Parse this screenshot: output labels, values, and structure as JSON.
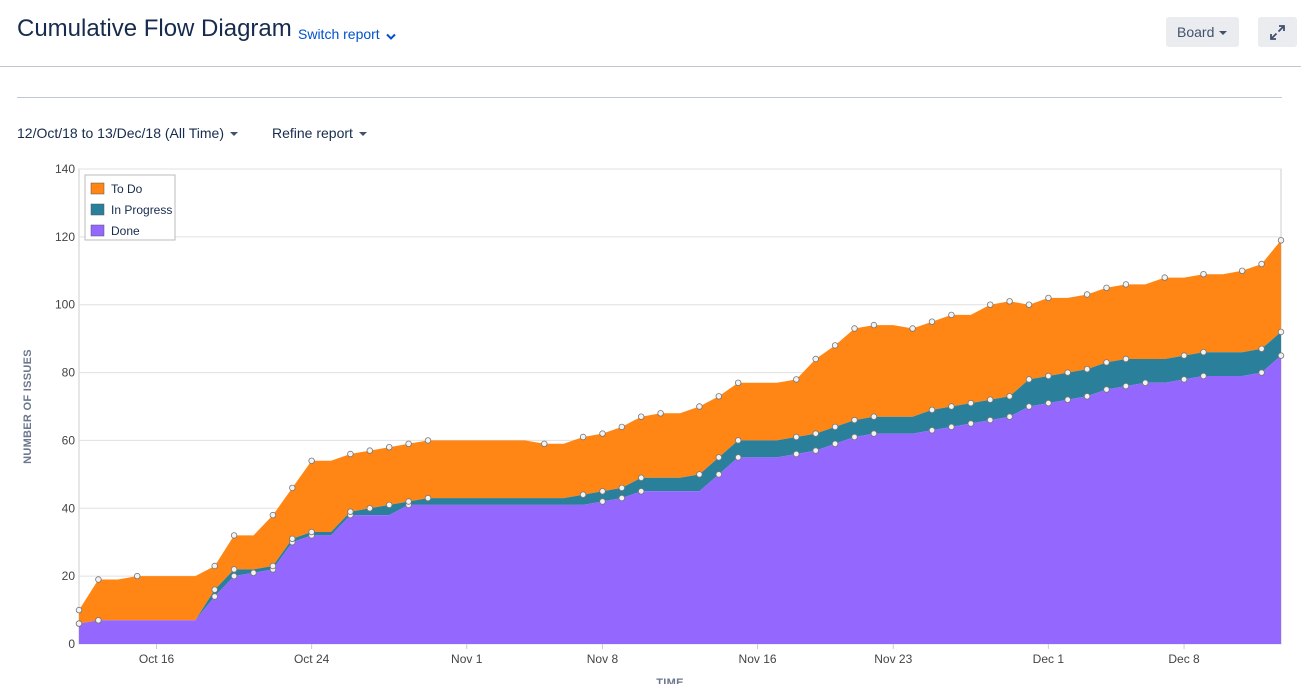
{
  "header": {
    "title": "Cumulative Flow Diagram",
    "switch_report": "Switch report",
    "board_label": "Board"
  },
  "filters": {
    "date_range": "12/Oct/18 to 13/Dec/18 (All Time)",
    "refine": "Refine report"
  },
  "icons": {
    "switch_chevron": "chevron-down-icon",
    "expand": "expand-icon"
  },
  "chart_data": {
    "type": "area",
    "stacked": true,
    "xlabel": "TIME",
    "ylabel": "NUMBER OF ISSUES",
    "ylim": [
      0,
      140
    ],
    "yticks": [
      "0",
      "20",
      "40",
      "60",
      "80",
      "100",
      "120",
      "140"
    ],
    "xlim": [
      "2018-10-12",
      "2018-12-13"
    ],
    "xticks": [
      {
        "label": "Oct 16",
        "date": "2018-10-16"
      },
      {
        "label": "Oct 24",
        "date": "2018-10-24"
      },
      {
        "label": "Nov 1",
        "date": "2018-11-01"
      },
      {
        "label": "Nov 8",
        "date": "2018-11-08"
      },
      {
        "label": "Nov 16",
        "date": "2018-11-16"
      },
      {
        "label": "Nov 23",
        "date": "2018-11-23"
      },
      {
        "label": "Dec 1",
        "date": "2018-12-01"
      },
      {
        "label": "Dec 8",
        "date": "2018-12-08"
      }
    ],
    "grid": true,
    "legend_position": "top-left",
    "colors": {
      "To Do": "#ff8514",
      "In Progress": "#2a7f9b",
      "Done": "#9467ff"
    },
    "x": [
      "2018-10-12",
      "2018-10-13",
      "2018-10-14",
      "2018-10-15",
      "2018-10-16",
      "2018-10-17",
      "2018-10-18",
      "2018-10-19",
      "2018-10-20",
      "2018-10-21",
      "2018-10-22",
      "2018-10-23",
      "2018-10-24",
      "2018-10-25",
      "2018-10-26",
      "2018-10-27",
      "2018-10-28",
      "2018-10-29",
      "2018-10-30",
      "2018-10-31",
      "2018-11-01",
      "2018-11-02",
      "2018-11-03",
      "2018-11-04",
      "2018-11-05",
      "2018-11-06",
      "2018-11-07",
      "2018-11-08",
      "2018-11-09",
      "2018-11-10",
      "2018-11-11",
      "2018-11-12",
      "2018-11-13",
      "2018-11-14",
      "2018-11-15",
      "2018-11-16",
      "2018-11-17",
      "2018-11-18",
      "2018-11-19",
      "2018-11-20",
      "2018-11-21",
      "2018-11-22",
      "2018-11-23",
      "2018-11-24",
      "2018-11-25",
      "2018-11-26",
      "2018-11-27",
      "2018-11-28",
      "2018-11-29",
      "2018-11-30",
      "2018-12-01",
      "2018-12-02",
      "2018-12-03",
      "2018-12-04",
      "2018-12-05",
      "2018-12-06",
      "2018-12-07",
      "2018-12-08",
      "2018-12-09",
      "2018-12-10",
      "2018-12-11",
      "2018-12-12",
      "2018-12-13"
    ],
    "series": [
      {
        "name": "To Do",
        "values": [
          4,
          12,
          12,
          13,
          13,
          13,
          13,
          7,
          10,
          10,
          15,
          15,
          21,
          21,
          17,
          17,
          17,
          17,
          17,
          17,
          17,
          17,
          17,
          17,
          16,
          16,
          17,
          17,
          18,
          18,
          19,
          19,
          20,
          18,
          17,
          17,
          17,
          17,
          22,
          24,
          27,
          27,
          27,
          26,
          26,
          27,
          26,
          28,
          28,
          22,
          23,
          22,
          22,
          22,
          22,
          22,
          24,
          23,
          23,
          23,
          24,
          25,
          27
        ]
      },
      {
        "name": "In Progress",
        "values": [
          0,
          0,
          0,
          0,
          0,
          0,
          0,
          2,
          2,
          1,
          1,
          1,
          1,
          1,
          1,
          2,
          3,
          1,
          2,
          2,
          2,
          2,
          2,
          2,
          2,
          2,
          3,
          3,
          3,
          4,
          4,
          4,
          5,
          5,
          5,
          5,
          5,
          5,
          5,
          5,
          5,
          5,
          5,
          5,
          6,
          6,
          6,
          6,
          6,
          8,
          8,
          8,
          8,
          8,
          8,
          7,
          7,
          7,
          7,
          7,
          7,
          7,
          7
        ]
      },
      {
        "name": "Done",
        "values": [
          6,
          7,
          7,
          7,
          7,
          7,
          7,
          14,
          20,
          21,
          22,
          30,
          32,
          32,
          38,
          38,
          38,
          41,
          41,
          41,
          41,
          41,
          41,
          41,
          41,
          41,
          41,
          42,
          43,
          45,
          45,
          45,
          45,
          50,
          55,
          55,
          55,
          56,
          57,
          59,
          61,
          62,
          62,
          62,
          63,
          64,
          65,
          66,
          67,
          70,
          71,
          72,
          73,
          75,
          76,
          77,
          77,
          78,
          79,
          79,
          79,
          80,
          85
        ]
      }
    ]
  }
}
